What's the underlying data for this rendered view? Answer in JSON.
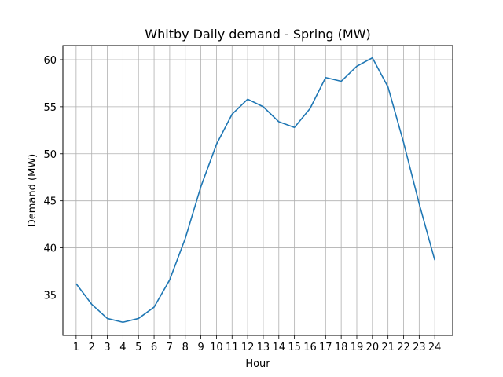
{
  "chart_data": {
    "type": "line",
    "title": "Whitby Daily demand - Spring (MW)",
    "xlabel": "Hour",
    "ylabel": "Demand (MW)",
    "x": [
      1,
      2,
      3,
      4,
      5,
      6,
      7,
      8,
      9,
      10,
      11,
      12,
      13,
      14,
      15,
      16,
      17,
      18,
      19,
      20,
      21,
      22,
      23,
      24
    ],
    "series": [
      {
        "values": [
          36.2,
          34.0,
          32.5,
          32.1,
          32.5,
          33.7,
          36.6,
          41.0,
          46.5,
          51.0,
          54.2,
          55.8,
          55.0,
          53.4,
          52.8,
          54.8,
          58.1,
          57.7,
          59.3,
          60.2,
          57.1,
          51.2,
          44.7,
          38.7
        ],
        "color": "#1f77b4"
      }
    ],
    "xlim": [
      0.15,
      25.15
    ],
    "ylim": [
      30.7,
      61.5
    ],
    "xticks": [
      "1",
      "2",
      "3",
      "4",
      "5",
      "6",
      "7",
      "8",
      "9",
      "10",
      "11",
      "12",
      "13",
      "14",
      "15",
      "16",
      "17",
      "18",
      "19",
      "20",
      "21",
      "22",
      "23",
      "24"
    ],
    "yticks": [
      35,
      40,
      45,
      50,
      55,
      60
    ],
    "grid": true
  }
}
